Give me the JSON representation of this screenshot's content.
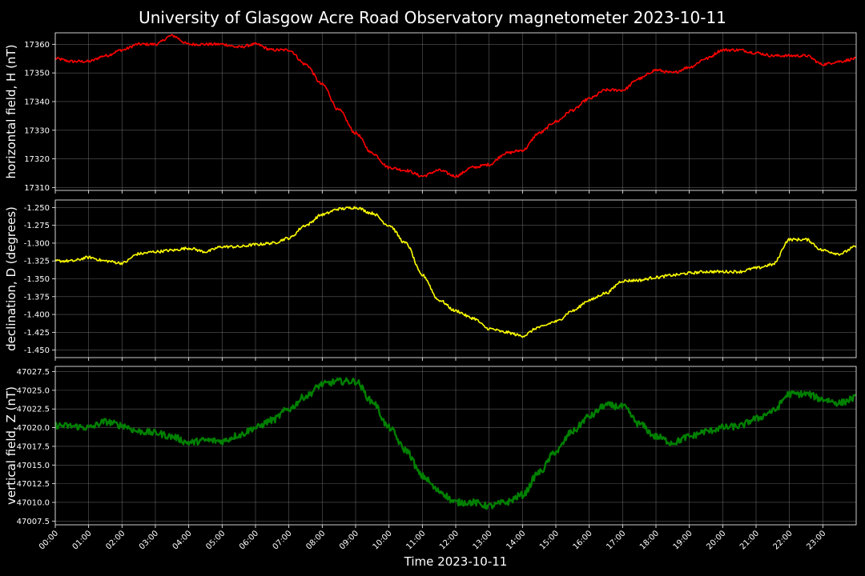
{
  "title": "University of Glasgow Acre Road Observatory magnetometer 2023-10-11",
  "xlabel": "Time 2023-10-11",
  "colors": {
    "background": "#000000",
    "text": "#ffffff",
    "grid": "#7a7a7a"
  },
  "chart_data": [
    {
      "type": "line",
      "ylabel": "horizontal field, H (nT)",
      "color": "#ff0000",
      "ylim": [
        17309,
        17364
      ],
      "yticks": [
        "17310",
        "17320",
        "17330",
        "17340",
        "17350",
        "17360"
      ],
      "grid": true,
      "x_hours": [
        0,
        0.5,
        1,
        1.5,
        2,
        2.5,
        3,
        3.5,
        4,
        4.5,
        5,
        5.5,
        6,
        6.5,
        7,
        7.5,
        8,
        8.5,
        9,
        9.5,
        10,
        10.5,
        11,
        11.5,
        12,
        12.5,
        13,
        13.5,
        14,
        14.5,
        15,
        15.5,
        16,
        16.5,
        17,
        17.5,
        18,
        18.5,
        19,
        19.5,
        20,
        20.5,
        21,
        21.5,
        22,
        22.5,
        23,
        23.5,
        24
      ],
      "y": [
        17355,
        17354,
        17354,
        17356,
        17358,
        17360,
        17360,
        17363,
        17360,
        17360,
        17360,
        17359,
        17360,
        17358,
        17358,
        17353,
        17346,
        17337,
        17329,
        17322,
        17317,
        17316,
        17314,
        17316,
        17314,
        17317,
        17318,
        17322,
        17323,
        17329,
        17333,
        17337,
        17341,
        17344,
        17344,
        17348,
        17351,
        17350,
        17352,
        17355,
        17358,
        17358,
        17357,
        17356,
        17356,
        17356,
        17353,
        17354,
        17355
      ]
    },
    {
      "type": "line",
      "ylabel": "declination, D (degrees)",
      "color": "#ffff00",
      "ylim": [
        -1.4605,
        -1.2395
      ],
      "yticks": [
        "-1.250",
        "-1.275",
        "-1.300",
        "-1.325",
        "-1.350",
        "-1.375",
        "-1.400",
        "-1.425",
        "-1.450"
      ],
      "grid": true,
      "x_hours": [
        0,
        0.5,
        1,
        1.5,
        2,
        2.5,
        3,
        3.5,
        4,
        4.5,
        5,
        5.5,
        6,
        6.5,
        7,
        7.5,
        8,
        8.5,
        9,
        9.5,
        10,
        10.5,
        11,
        11.5,
        12,
        12.5,
        13,
        13.5,
        14,
        14.5,
        15,
        15.5,
        16,
        16.5,
        17,
        17.5,
        18,
        18.5,
        19,
        19.5,
        20,
        20.5,
        21,
        21.5,
        22,
        22.5,
        23,
        23.5,
        24
      ],
      "y": [
        -1.325,
        -1.325,
        -1.32,
        -1.325,
        -1.328,
        -1.315,
        -1.312,
        -1.31,
        -1.307,
        -1.312,
        -1.305,
        -1.305,
        -1.302,
        -1.3,
        -1.293,
        -1.275,
        -1.26,
        -1.252,
        -1.25,
        -1.258,
        -1.275,
        -1.3,
        -1.345,
        -1.38,
        -1.395,
        -1.405,
        -1.42,
        -1.425,
        -1.43,
        -1.418,
        -1.41,
        -1.395,
        -1.38,
        -1.37,
        -1.353,
        -1.352,
        -1.348,
        -1.345,
        -1.342,
        -1.34,
        -1.34,
        -1.34,
        -1.335,
        -1.33,
        -1.295,
        -1.295,
        -1.31,
        -1.315,
        -1.305
      ]
    },
    {
      "type": "line",
      "ylabel": "vertical field, Z (nT)",
      "color": "#008000",
      "ylim": [
        47007,
        47028.2
      ],
      "yticks": [
        "47007.5",
        "47010.0",
        "47012.5",
        "47015.0",
        "47017.5",
        "47020.0",
        "47022.5",
        "47025.0",
        "47027.5"
      ],
      "grid": true,
      "x_hours": [
        0,
        0.5,
        1,
        1.5,
        2,
        2.5,
        3,
        3.5,
        4,
        4.5,
        5,
        5.5,
        6,
        6.5,
        7,
        7.5,
        8,
        8.5,
        9,
        9.5,
        10,
        10.5,
        11,
        11.5,
        12,
        12.5,
        13,
        13.5,
        14,
        14.5,
        15,
        15.5,
        16,
        16.5,
        17,
        17.5,
        18,
        18.5,
        19,
        19.5,
        20,
        20.5,
        21,
        21.5,
        22,
        22.5,
        23,
        23.5,
        24
      ],
      "y": [
        47020.3,
        47020.2,
        47020,
        47020.8,
        47020.3,
        47019.5,
        47019.3,
        47018.8,
        47018,
        47018.3,
        47018.2,
        47019,
        47020,
        47021,
        47022.5,
        47024.2,
        47025.8,
        47026.2,
        47026.2,
        47023.5,
        47020,
        47017,
        47013.5,
        47011.5,
        47010,
        47010,
        47009.5,
        47010,
        47011,
        47014,
        47016.8,
        47019.5,
        47021.5,
        47023,
        47022.8,
        47020.5,
        47018.8,
        47018,
        47018.8,
        47019.5,
        47020,
        47020.2,
        47021.2,
        47022.2,
        47024.5,
        47024.5,
        47023.8,
        47023.3,
        47024
      ]
    }
  ],
  "xticks": [
    "00:00",
    "01:00",
    "02:00",
    "03:00",
    "04:00",
    "05:00",
    "06:00",
    "07:00",
    "08:00",
    "09:00",
    "10:00",
    "11:00",
    "12:00",
    "13:00",
    "14:00",
    "15:00",
    "16:00",
    "17:00",
    "18:00",
    "19:00",
    "20:00",
    "21:00",
    "22:00",
    "23:00"
  ],
  "xlim_hours": [
    0,
    24
  ]
}
